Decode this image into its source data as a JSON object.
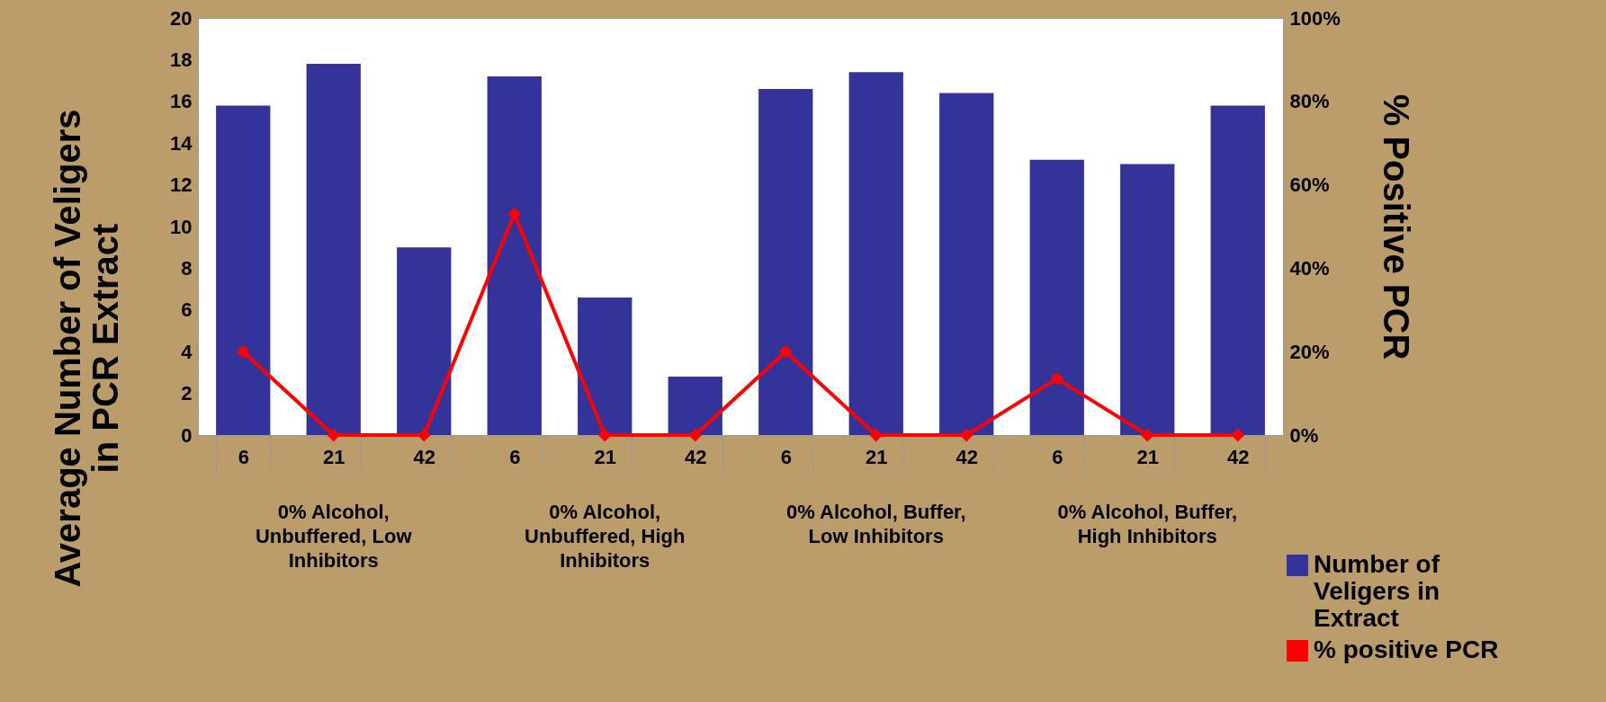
{
  "chart_data": {
    "type": "bar",
    "ylabel": "Average Number of Veligers in PCR Extract",
    "y2label": "% Positive PCR",
    "categories": [
      "6",
      "21",
      "42",
      "6",
      "21",
      "42",
      "6",
      "21",
      "42",
      "6",
      "21",
      "42"
    ],
    "series": [
      {
        "name": "Number of Veligers in Extract",
        "color": "#333399",
        "values": [
          15.8,
          17.8,
          9.0,
          17.2,
          6.6,
          2.8,
          16.6,
          17.4,
          16.4,
          13.2,
          13.0,
          15.8
        ]
      },
      {
        "name": "% positive PCR",
        "type": "line",
        "axis": "y2",
        "color": "#ff0000",
        "marker": "diamond",
        "values": [
          20,
          0,
          0,
          53,
          0,
          0,
          20,
          0,
          0,
          13.5,
          0,
          0
        ]
      }
    ],
    "ylim": [
      0,
      20
    ],
    "yticks": [
      0,
      2,
      4,
      6,
      8,
      10,
      12,
      14,
      16,
      18,
      20
    ],
    "y2lim": [
      0,
      100
    ],
    "y2ticks": [
      {
        "value": 0,
        "label": "0%"
      },
      {
        "value": 20,
        "label": "20%"
      },
      {
        "value": 40,
        "label": "40%"
      },
      {
        "value": 60,
        "label": "60%"
      },
      {
        "value": 80,
        "label": "80%"
      },
      {
        "value": 100,
        "label": "100%"
      }
    ],
    "annotations": [
      "0% Alcohol, Unbuffered, Low Inhibitors",
      "0% Alcohol, Unbuffered, High Inhibitors",
      "0% Alcohol, Buffer, Low Inhibitors",
      "0% Alcohol, Buffer, High Inhibitors"
    ],
    "legend": "bottom right",
    "grid": false
  }
}
